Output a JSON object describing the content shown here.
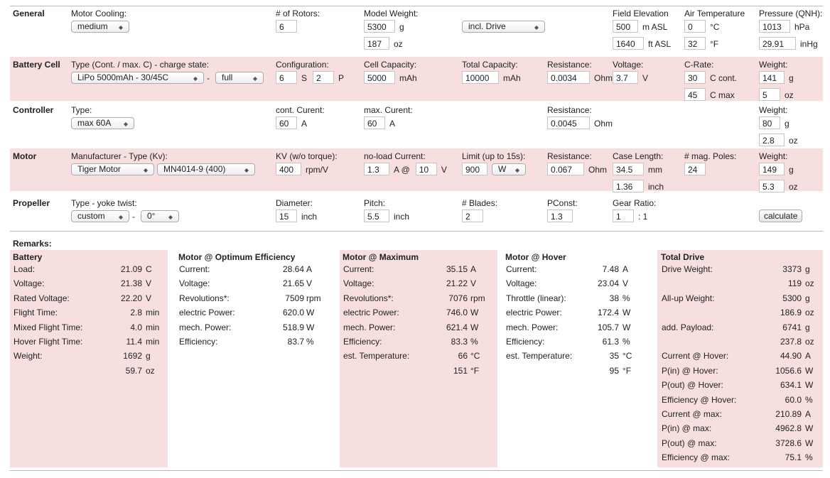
{
  "sections": [
    {
      "title": "General",
      "fields": [
        {
          "label": "Motor Cooling:",
          "lines": [
            [
              {
                "select": "medium"
              }
            ]
          ]
        },
        {
          "label": "# of Rotors:",
          "lines": [
            [
              {
                "input": "6"
              }
            ]
          ]
        },
        {
          "label": "Model Weight:",
          "lines": [
            [
              {
                "input": "5300"
              },
              {
                "text": "g"
              }
            ],
            [
              {
                "input": "187"
              },
              {
                "text": "oz"
              }
            ]
          ]
        },
        {
          "lines": [
            [
              {
                "select": "incl. Drive"
              }
            ]
          ]
        },
        {
          "label": "Field Elevation",
          "lines": [
            [
              {
                "input": "500"
              },
              {
                "text": "m ASL"
              }
            ],
            [
              {
                "input": "1640"
              },
              {
                "text": "ft ASL"
              }
            ]
          ]
        },
        {
          "label": "Air Temperature",
          "lines": [
            [
              {
                "input": "0"
              },
              {
                "text": "°C"
              }
            ],
            [
              {
                "input": "32"
              },
              {
                "text": "°F"
              }
            ]
          ]
        },
        {
          "label": "Pressure (QNH):",
          "lines": [
            [
              {
                "input": "1013"
              },
              {
                "text": "hPa"
              }
            ],
            [
              {
                "input": "29.91"
              },
              {
                "text": "inHg"
              }
            ]
          ]
        }
      ]
    },
    {
      "title": "Battery Cell",
      "fields": [
        {
          "label": "Type (Cont. / max. C) - charge state:",
          "lines": [
            [
              {
                "select": "LiPo 5000mAh - 30/45C"
              },
              {
                "text": "-"
              },
              {
                "select": "full"
              }
            ]
          ]
        },
        {
          "label": "Configuration:",
          "lines": [
            [
              {
                "input": "6"
              },
              {
                "text": "S"
              },
              {
                "input": "2"
              },
              {
                "text": "P"
              }
            ]
          ]
        },
        {
          "label": "Cell Capacity:",
          "lines": [
            [
              {
                "input": "5000"
              },
              {
                "text": "mAh"
              }
            ]
          ]
        },
        {
          "label": "Total Capacity:",
          "lines": [
            [
              {
                "input": "10000"
              },
              {
                "text": "mAh"
              }
            ]
          ]
        },
        {
          "label": "Resistance:",
          "lines": [
            [
              {
                "input": "0.0034"
              },
              {
                "text": "Ohm"
              }
            ]
          ]
        },
        {
          "label": "Voltage:",
          "lines": [
            [
              {
                "input": "3.7"
              },
              {
                "text": "V"
              }
            ]
          ]
        },
        {
          "label": "C-Rate:",
          "lines": [
            [
              {
                "input": "30"
              },
              {
                "text": "C cont."
              }
            ],
            [
              {
                "input": "45"
              },
              {
                "text": "C max"
              }
            ]
          ]
        },
        {
          "label": "Weight:",
          "lines": [
            [
              {
                "input": "141"
              },
              {
                "text": "g"
              }
            ],
            [
              {
                "input": "5"
              },
              {
                "text": "oz"
              }
            ]
          ]
        }
      ]
    },
    {
      "title": "Controller",
      "fields": [
        {
          "label": "Type:",
          "lines": [
            [
              {
                "select": "max 60A"
              }
            ]
          ]
        },
        {
          "label": "cont. Curent:",
          "lines": [
            [
              {
                "input": "60"
              },
              {
                "text": "A"
              }
            ]
          ]
        },
        {
          "label": "max. Curent:",
          "lines": [
            [
              {
                "input": "60"
              },
              {
                "text": "A"
              }
            ]
          ]
        },
        {
          "label": "Resistance:",
          "lines": [
            [
              {
                "input": "0.0045"
              },
              {
                "text": "Ohm"
              }
            ]
          ]
        },
        {
          "label": "Weight:",
          "lines": [
            [
              {
                "input": "80"
              },
              {
                "text": "g"
              }
            ],
            [
              {
                "input": "2.8"
              },
              {
                "text": "oz"
              }
            ]
          ]
        }
      ]
    },
    {
      "title": "Motor",
      "fields": [
        {
          "label": "Manufacturer - Type (Kv):",
          "lines": [
            [
              {
                "select": "Tiger Motor"
              },
              {
                "select": "MN4014-9 (400)"
              }
            ]
          ]
        },
        {
          "label": "KV (w/o torque):",
          "lines": [
            [
              {
                "input": "400"
              },
              {
                "text": "rpm/V"
              }
            ]
          ]
        },
        {
          "label": "no-load Current:",
          "lines": [
            [
              {
                "input": "1.3"
              },
              {
                "text": "A @"
              },
              {
                "input": "10"
              },
              {
                "text": "V"
              }
            ]
          ]
        },
        {
          "label": "Limit (up to 15s):",
          "lines": [
            [
              {
                "input": "900"
              },
              {
                "select": "W"
              }
            ]
          ]
        },
        {
          "label": "Resistance:",
          "lines": [
            [
              {
                "input": "0.067"
              },
              {
                "text": "Ohm"
              }
            ]
          ]
        },
        {
          "label": "Case Length:",
          "lines": [
            [
              {
                "input": "34.5"
              },
              {
                "text": "mm"
              }
            ],
            [
              {
                "input": "1.36"
              },
              {
                "text": "inch"
              }
            ]
          ]
        },
        {
          "label": "# mag. Poles:",
          "lines": [
            [
              {
                "input": "24"
              }
            ]
          ]
        },
        {
          "label": "Weight:",
          "lines": [
            [
              {
                "input": "149"
              },
              {
                "text": "g"
              }
            ],
            [
              {
                "input": "5.3"
              },
              {
                "text": "oz"
              }
            ]
          ]
        }
      ]
    },
    {
      "title": "Propeller",
      "fields": [
        {
          "label": "Type - yoke twist:",
          "lines": [
            [
              {
                "select": "custom"
              },
              {
                "text": "-"
              },
              {
                "select": "0°"
              }
            ]
          ]
        },
        {
          "label": "Diameter:",
          "lines": [
            [
              {
                "input": "15"
              },
              {
                "text": "inch"
              }
            ]
          ]
        },
        {
          "label": "Pitch:",
          "lines": [
            [
              {
                "input": "5.5"
              },
              {
                "text": "inch"
              }
            ]
          ]
        },
        {
          "label": "# Blades:",
          "lines": [
            [
              {
                "input": "2"
              }
            ]
          ]
        },
        {
          "label": "PConst:",
          "lines": [
            [
              {
                "input": "1.3"
              }
            ]
          ]
        },
        {
          "label": "Gear Ratio:",
          "lines": [
            [
              {
                "input": "1"
              },
              {
                "text": ": 1"
              }
            ]
          ]
        },
        {
          "lines": [
            [
              {
                "button": "calculate"
              }
            ]
          ]
        }
      ]
    }
  ],
  "results": {
    "title": "Remarks:",
    "columns": [
      {
        "title": "Battery",
        "rows": [
          {
            "label": "Load:",
            "value": "21.09",
            "unit": "C"
          },
          {
            "label": "Voltage:",
            "value": "21.38",
            "unit": "V"
          },
          {
            "label": "Rated Voltage:",
            "value": "22.20",
            "unit": "V"
          },
          {
            "label": "Flight Time:",
            "value": "2.8",
            "unit": "min"
          },
          {
            "label": "Mixed Flight Time:",
            "value": "4.0",
            "unit": "min"
          },
          {
            "label": "Hover Flight Time:",
            "value": "11.4",
            "unit": "min"
          },
          {
            "label": "Weight:",
            "value": "1692",
            "unit": "g"
          },
          {
            "value": "59.7",
            "unit": "oz"
          }
        ]
      },
      {
        "title": "Motor @ Optimum Efficiency",
        "rows": [
          {
            "label": "Current:",
            "value": "28.64",
            "unit": "A"
          },
          {
            "label": "Voltage:",
            "value": "21.65",
            "unit": "V"
          },
          {
            "label": "Revolutions*:",
            "value": "7509",
            "unit": "rpm"
          },
          {
            "label": "electric Power:",
            "value": "620.0",
            "unit": "W"
          },
          {
            "label": "mech. Power:",
            "value": "518.9",
            "unit": "W"
          },
          {
            "label": "Efficiency:",
            "value": "83.7",
            "unit": "%"
          }
        ]
      },
      {
        "title": "Motor @ Maximum",
        "rows": [
          {
            "label": "Current:",
            "value": "35.15",
            "unit": "A"
          },
          {
            "label": "Voltage:",
            "value": "21.22",
            "unit": "V"
          },
          {
            "label": "Revolutions*:",
            "value": "7076",
            "unit": "rpm"
          },
          {
            "label": "electric Power:",
            "value": "746.0",
            "unit": "W"
          },
          {
            "label": "mech. Power:",
            "value": "621.4",
            "unit": "W"
          },
          {
            "label": "Efficiency:",
            "value": "83.3",
            "unit": "%"
          },
          {
            "label": "est. Temperature:",
            "value": "66",
            "unit": "°C"
          },
          {
            "value": "151",
            "unit": "°F"
          }
        ]
      },
      {
        "title": "Motor @ Hover",
        "rows": [
          {
            "label": "Current:",
            "value": "7.48",
            "unit": "A"
          },
          {
            "label": "Voltage:",
            "value": "23.04",
            "unit": "V"
          },
          {
            "label": "Throttle (linear):",
            "value": "38",
            "unit": "%"
          },
          {
            "label": "electric Power:",
            "value": "172.4",
            "unit": "W"
          },
          {
            "label": "mech. Power:",
            "value": "105.7",
            "unit": "W"
          },
          {
            "label": "Efficiency:",
            "value": "61.3",
            "unit": "%"
          },
          {
            "label": "est. Temperature:",
            "value": "35",
            "unit": "°C"
          },
          {
            "value": "95",
            "unit": "°F"
          }
        ]
      },
      {
        "title": "Total Drive",
        "rows": [
          {
            "label": "Drive Weight:",
            "value": "3373",
            "unit": "g"
          },
          {
            "value": "119",
            "unit": "oz"
          },
          {
            "label": "All-up Weight:",
            "value": "5300",
            "unit": "g"
          },
          {
            "value": "186.9",
            "unit": "oz"
          },
          {
            "label": "add. Payload:",
            "value": "6741",
            "unit": "g"
          },
          {
            "value": "237.8",
            "unit": "oz"
          },
          {
            "label": "Current @ Hover:",
            "value": "44.90",
            "unit": "A"
          },
          {
            "label": "P(in) @ Hover:",
            "value": "1056.6",
            "unit": "W"
          },
          {
            "label": "P(out) @ Hover:",
            "value": "634.1",
            "unit": "W"
          },
          {
            "label": "Efficiency @ Hover:",
            "value": "60.0",
            "unit": "%"
          },
          {
            "label": "Current @ max:",
            "value": "210.89",
            "unit": "A"
          },
          {
            "label": "P(in) @ max:",
            "value": "4962.8",
            "unit": "W"
          },
          {
            "label": "P(out) @ max:",
            "value": "3728.6",
            "unit": "W"
          },
          {
            "label": "Efficiency @ max:",
            "value": "75.1",
            "unit": "%"
          }
        ]
      }
    ]
  }
}
